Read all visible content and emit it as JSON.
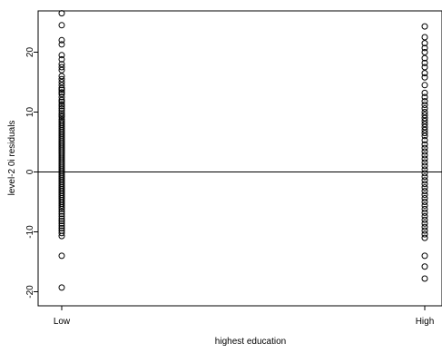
{
  "chart_data": {
    "type": "scatter",
    "title": "",
    "xlabel": "highest education",
    "ylabel": "level-2 0i residuals",
    "categories": [
      "Low",
      "High"
    ],
    "ylim": [
      -22,
      27
    ],
    "yticks": [
      -20,
      -10,
      0,
      10,
      20
    ],
    "reference_line_y": 0,
    "marker": "open-circle",
    "grid": false,
    "legend": "none",
    "series": [
      {
        "category": "Low",
        "values": [
          26.5,
          24.5,
          22,
          21.3,
          19.5,
          18.8,
          18,
          17.5,
          17,
          16,
          15.5,
          15,
          14.5,
          14,
          13.7,
          13.3,
          13,
          12.5,
          12,
          11.7,
          11.3,
          11,
          10.6,
          10.2,
          9.8,
          9.5,
          9.2,
          8.8,
          8.5,
          8.2,
          7.9,
          7.6,
          7.3,
          7,
          6.7,
          6.4,
          6.1,
          5.8,
          5.5,
          5.2,
          4.9,
          4.6,
          4.3,
          4,
          3.7,
          3.4,
          3.1,
          2.8,
          2.5,
          2.2,
          1.9,
          1.6,
          1.3,
          1,
          0.7,
          0.4,
          0.1,
          -0.2,
          -0.5,
          -0.8,
          -1.1,
          -1.4,
          -1.7,
          -2,
          -2.3,
          -2.6,
          -2.9,
          -3.2,
          -3.5,
          -3.8,
          -4.1,
          -4.4,
          -4.7,
          -5,
          -5.3,
          -5.6,
          -5.9,
          -6.2,
          -6.6,
          -7,
          -7.4,
          -7.8,
          -8.2,
          -8.6,
          -9,
          -9.4,
          -9.8,
          -10.2,
          -10.7,
          -14,
          -19.3
        ]
      },
      {
        "category": "High",
        "values": [
          24.3,
          22.5,
          21.5,
          20.7,
          20,
          19,
          18.2,
          17.5,
          16.5,
          15.8,
          14.5,
          13.2,
          12.5,
          11.8,
          11.2,
          10.6,
          10,
          9.5,
          9,
          8.5,
          8,
          7.5,
          7,
          6.5,
          6,
          5.3,
          4.6,
          4,
          3.4,
          2.8,
          2.2,
          1.6,
          1,
          0.4,
          -0.2,
          -0.8,
          -1.4,
          -2,
          -2.6,
          -3.2,
          -3.8,
          -4.4,
          -5,
          -5.6,
          -6.2,
          -6.8,
          -7.4,
          -8,
          -8.6,
          -9.2,
          -9.8,
          -10.4,
          -11,
          -14,
          -15.8,
          -17.8
        ]
      }
    ]
  }
}
